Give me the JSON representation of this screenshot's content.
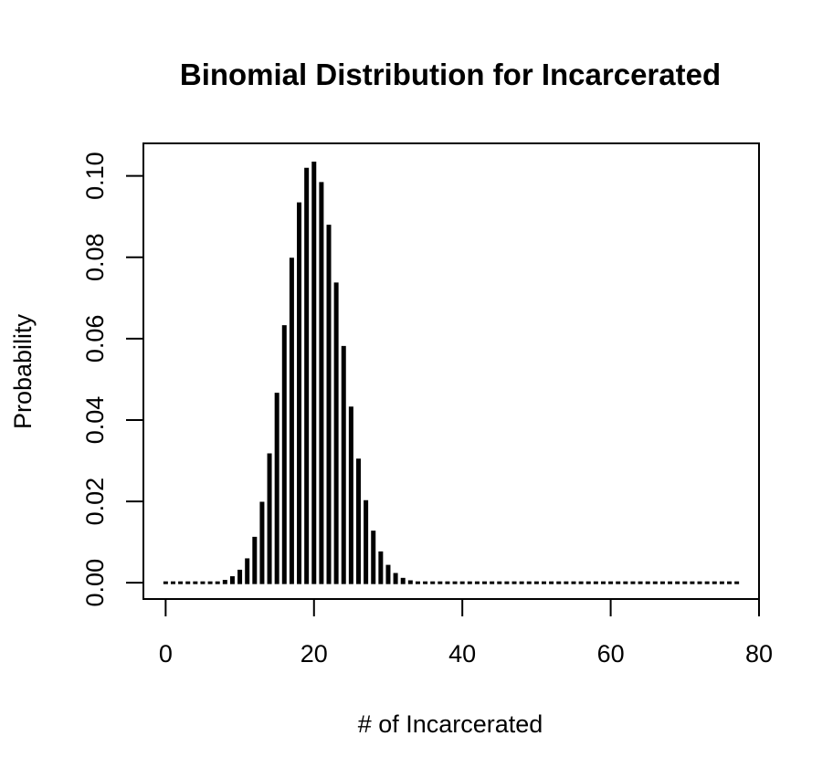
{
  "chart_data": {
    "type": "bar",
    "title": "Binomial Distribution for Incarcerated",
    "xlabel": "# of Incarcerated",
    "ylabel": "Probability",
    "xlim": [
      -3,
      80
    ],
    "ylim": [
      -0.004,
      0.108
    ],
    "x_ticks": [
      0,
      20,
      40,
      60,
      80
    ],
    "x_tick_labels": [
      "0",
      "20",
      "40",
      "60",
      "80"
    ],
    "y_ticks": [
      0.0,
      0.02,
      0.04,
      0.06,
      0.08,
      0.1
    ],
    "y_tick_labels": [
      "0.00",
      "0.02",
      "0.04",
      "0.06",
      "0.08",
      "0.10"
    ],
    "grid": false,
    "legend": "none",
    "bar_color": "#000000",
    "x": [
      0,
      1,
      2,
      3,
      4,
      5,
      6,
      7,
      8,
      9,
      10,
      11,
      12,
      13,
      14,
      15,
      16,
      17,
      18,
      19,
      20,
      21,
      22,
      23,
      24,
      25,
      26,
      27,
      28,
      29,
      30,
      31,
      32,
      33,
      34,
      35,
      36,
      37,
      38,
      39,
      40,
      41,
      42,
      43,
      44,
      45,
      46,
      47,
      48,
      49,
      50,
      51,
      52,
      53,
      54,
      55,
      56,
      57,
      58,
      59,
      60,
      61,
      62,
      63,
      64,
      65,
      66,
      67,
      68,
      69,
      70,
      71,
      72,
      73,
      74,
      75,
      76,
      77
    ],
    "values": [
      0.0,
      0.0,
      0.0,
      0.0,
      0.0,
      0.0,
      0.0001,
      0.0003,
      0.0007,
      0.0016,
      0.0032,
      0.006,
      0.0113,
      0.0199,
      0.0318,
      0.0467,
      0.0633,
      0.0799,
      0.0935,
      0.102,
      0.1035,
      0.0985,
      0.088,
      0.0738,
      0.0582,
      0.0433,
      0.0305,
      0.0203,
      0.0128,
      0.0077,
      0.0044,
      0.0024,
      0.0012,
      0.0006,
      0.0003,
      0.0001,
      0.0001,
      0.0,
      0.0,
      0.0,
      0.0,
      0.0,
      0.0,
      0.0,
      0.0,
      0.0,
      0.0,
      0.0,
      0.0,
      0.0,
      0.0,
      0.0,
      0.0,
      0.0,
      0.0,
      0.0,
      0.0,
      0.0,
      0.0,
      0.0,
      0.0,
      0.0,
      0.0,
      0.0,
      0.0,
      0.0,
      0.0,
      0.0,
      0.0,
      0.0,
      0.0,
      0.0,
      0.0,
      0.0,
      0.0,
      0.0,
      0.0,
      0.0
    ]
  }
}
